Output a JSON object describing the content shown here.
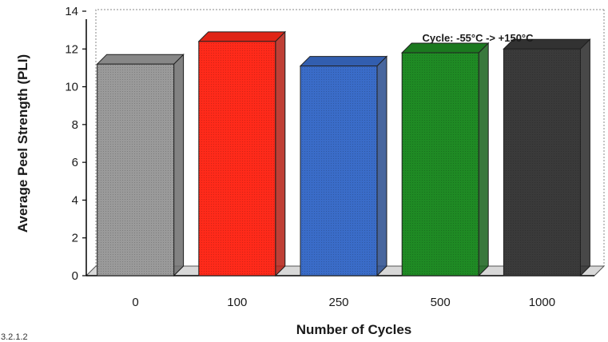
{
  "chart_data": {
    "type": "bar",
    "style": "3d",
    "categories": [
      "0",
      "100",
      "250",
      "500",
      "1000"
    ],
    "values": [
      11.2,
      12.4,
      11.1,
      11.8,
      12.0
    ],
    "bar_colors": [
      "#9a9a9a",
      "#ff2a1a",
      "#3a6cc8",
      "#1f8a24",
      "#3a3a3a"
    ],
    "xlabel": "Number of Cycles",
    "ylabel": "Average Peel Strength (PLI)",
    "ylim": [
      0,
      14
    ],
    "yticks": [
      0,
      2,
      4,
      6,
      8,
      10,
      12,
      14
    ],
    "grid": false,
    "annotation": "Cycle: -55°C -> +150°C",
    "corner_note": "3.2.1.2"
  }
}
